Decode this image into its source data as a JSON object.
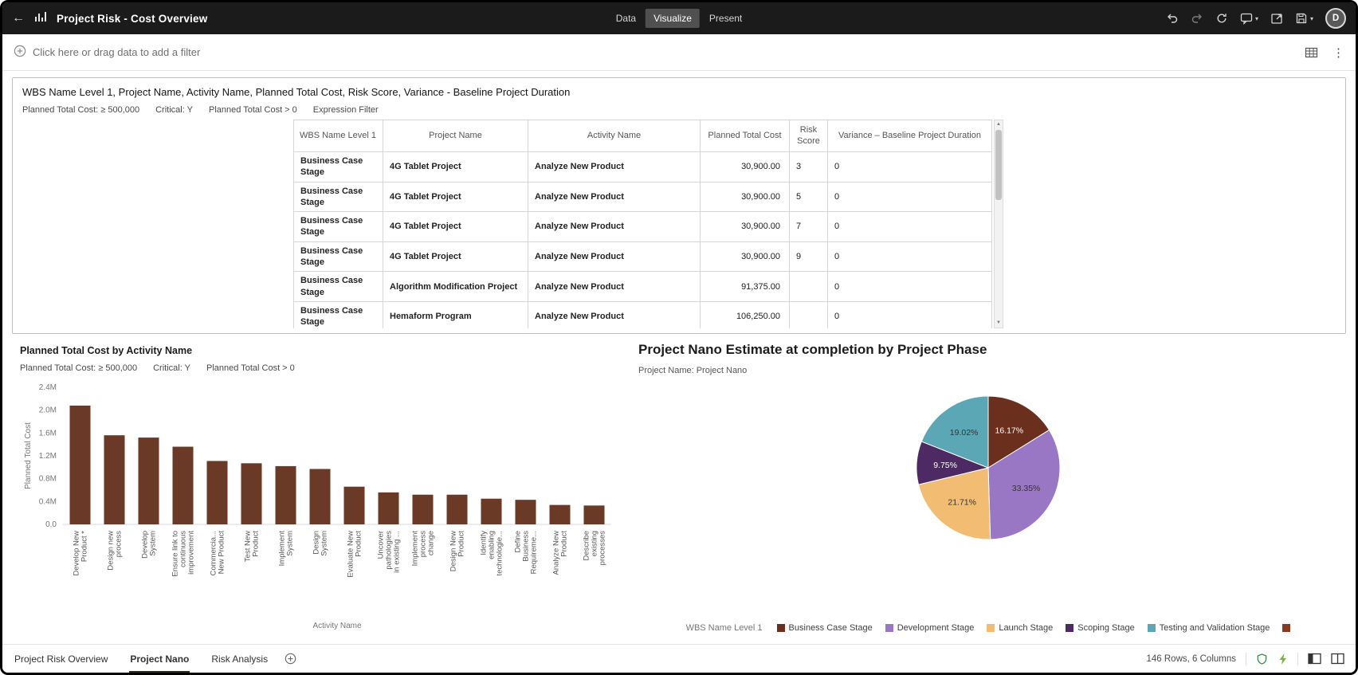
{
  "header": {
    "title": "Project Risk - Cost Overview",
    "tabs": [
      {
        "label": "Data",
        "active": false
      },
      {
        "label": "Visualize",
        "active": true
      },
      {
        "label": "Present",
        "active": false
      }
    ],
    "avatar_initial": "D"
  },
  "icons": {
    "back": "←",
    "kebab": "⋮",
    "caret_down": "▾",
    "up_arrow": "▲",
    "down_arrow": "▼"
  },
  "colors": {
    "topbar_bg": "#1b1b1b",
    "active_tab_bg": "#505050",
    "accent_green": "#6fa832"
  },
  "filter_bar": {
    "prompt": "Click here or drag data to add a filter"
  },
  "table_panel": {
    "title": "WBS Name Level 1, Project Name, Activity Name, Planned Total Cost, Risk Score, Variance - Baseline Project Duration",
    "filters": [
      "Planned Total Cost: ≥ 500,000",
      "Critical: Y",
      "Planned Total Cost > 0",
      "Expression Filter"
    ],
    "columns": [
      "WBS Name Level 1",
      "Project Name",
      "Activity Name",
      "Planned Total Cost",
      "Risk Score",
      "Variance – Baseline Project Duration"
    ],
    "rows": [
      [
        "Business Case Stage",
        "4G Tablet Project",
        "Analyze New Product",
        "30,900.00",
        "3",
        "0"
      ],
      [
        "Business Case Stage",
        "4G Tablet Project",
        "Analyze New Product",
        "30,900.00",
        "5",
        "0"
      ],
      [
        "Business Case Stage",
        "4G Tablet Project",
        "Analyze New Product",
        "30,900.00",
        "7",
        "0"
      ],
      [
        "Business Case Stage",
        "4G Tablet Project",
        "Analyze New Product",
        "30,900.00",
        "9",
        "0"
      ],
      [
        "Business Case Stage",
        "Algorithm Modification Project",
        "Analyze New Product",
        "91,375.00",
        "",
        "0"
      ],
      [
        "Business Case Stage",
        "Hemaform Program",
        "Analyze New Product",
        "106,250.00",
        "",
        "0"
      ],
      [
        "Business Case Stage",
        "",
        "",
        "",
        "",
        ""
      ]
    ]
  },
  "chart_data": [
    {
      "type": "bar",
      "title": "Planned Total Cost by Activity Name",
      "filters": [
        "Planned Total Cost: ≥ 500,000",
        "Critical: Y",
        "Planned Total Cost > 0"
      ],
      "xlabel": "Activity Name",
      "ylabel": "Planned Total Cost",
      "ylim": [
        0,
        2.4
      ],
      "yticks": [
        "0.0",
        "0.4M",
        "0.8M",
        "1.2M",
        "1.6M",
        "2.0M",
        "2.4M"
      ],
      "bar_color": "#6b3a27",
      "grid": false,
      "categories": [
        [
          "Develop New",
          "Product *"
        ],
        [
          "Design new",
          "process"
        ],
        [
          "Develop",
          "System"
        ],
        [
          "Ensure link to",
          "continuous",
          "improvement"
        ],
        [
          "Commercia...",
          "New Product"
        ],
        [
          "Test New",
          "Product"
        ],
        [
          "Implement",
          "System"
        ],
        [
          "Design",
          "System"
        ],
        [
          "Evaluate New",
          "Product"
        ],
        [
          "Uncover",
          "pathologies",
          "in existing ..."
        ],
        [
          "Implement",
          "process",
          "change"
        ],
        [
          "Design New",
          "Product"
        ],
        [
          "Identify",
          "enabling",
          "technologie..."
        ],
        [
          "Define",
          "Business",
          "Requireme..."
        ],
        [
          "Analyze New",
          "Product"
        ],
        [
          "Describe",
          "existing",
          "processes"
        ]
      ],
      "values_millions": [
        2.08,
        1.56,
        1.52,
        1.36,
        1.11,
        1.07,
        1.02,
        0.97,
        0.66,
        0.56,
        0.52,
        0.52,
        0.45,
        0.43,
        0.34,
        0.33
      ]
    },
    {
      "type": "pie",
      "title": "Project Nano Estimate at completion by Project Phase",
      "subtitle_label": "Project Name:",
      "subtitle_value": "Project Nano",
      "legend_title": "WBS Name Level 1",
      "legend_position": "bottom",
      "slices": [
        {
          "label": "Business Case Stage",
          "value": 16.17,
          "color": "#6b2f1e",
          "text_color": "#ffffff"
        },
        {
          "label": "Development Stage",
          "value": 33.35,
          "color": "#9a77c4",
          "text_color": "#333333"
        },
        {
          "label": "Launch Stage",
          "value": 21.71,
          "color": "#f2bd72",
          "text_color": "#333333"
        },
        {
          "label": "Scoping Stage",
          "value": 9.75,
          "color": "#4d2a63",
          "text_color": "#ffffff"
        },
        {
          "label": "Testing and Validation Stage",
          "value": 19.02,
          "color": "#5ca7b6",
          "text_color": "#333333"
        }
      ],
      "extra_legend_color": "#8a3a1e"
    }
  ],
  "footer": {
    "canvas_tabs": [
      {
        "label": "Project Risk Overview",
        "active": false
      },
      {
        "label": "Project Nano",
        "active": true
      },
      {
        "label": "Risk Analysis",
        "active": false
      }
    ],
    "status": "146 Rows, 6 Columns"
  }
}
